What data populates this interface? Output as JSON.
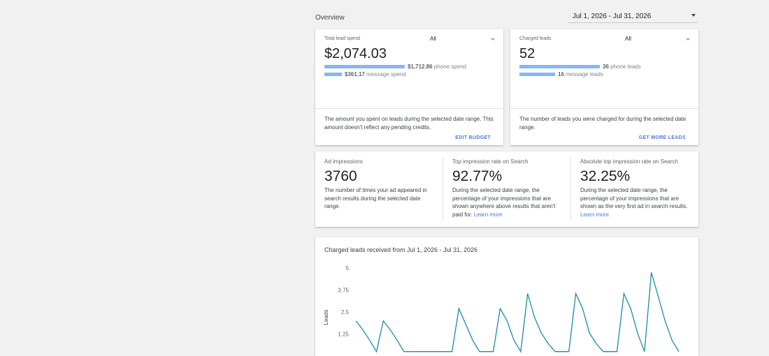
{
  "header": {
    "overview_label": "Overview",
    "date_range": "Jul 1, 2026 - Jul 31, 2026"
  },
  "spend_card": {
    "title": "Total lead spend",
    "filter": "All",
    "value": "$2,074.03",
    "phone_amount": "$1,712.86",
    "phone_label": "phone spend",
    "phone_share": 0.825,
    "message_amount": "$361.17",
    "message_label": "message spend",
    "message_share": 0.174,
    "description": "The amount you spent on leads during the selected date range. This amount doesn't reflect any pending credits.",
    "action": "EDIT BUDGET"
  },
  "leads_card": {
    "title": "Charged leads",
    "filter": "All",
    "value": "52",
    "phone_amount": "36",
    "phone_label": "phone leads",
    "phone_share": 0.69,
    "message_amount": "16",
    "message_label": "message leads",
    "message_share": 0.31,
    "description": "The number of leads you were charged for during the selected date range.",
    "action": "GET MORE LEADS"
  },
  "impressions_card": {
    "ad_impressions": {
      "title": "Ad impressions",
      "value": "3760",
      "description": "The number of times your ad appeared in search results during the selected date range."
    },
    "top_rate": {
      "title": "Top impression rate on Search",
      "value": "92.77%",
      "description": "During the selected date range, the percentage of your impressions that are shown anywhere above results that aren't paid for.",
      "link": "Learn more"
    },
    "abs_top_rate": {
      "title": "Absolute top impression rate on Search",
      "value": "32.25%",
      "description": "During the selected date range, the percentage of your impressions that are shown as the very first ad in search results.",
      "link": "Learn more"
    }
  },
  "chart_card": {
    "title": "Charged leads received from Jul 1, 2026 - Jul 31, 2026"
  },
  "chart_data": {
    "type": "line",
    "title": "Charged leads received from Jul 1, 2026 - Jul 31, 2026",
    "ylabel": "Leads",
    "xlabel": "",
    "ylim": [
      0,
      5
    ],
    "yticks": [
      "5",
      "3.75",
      "2.5",
      "1.25"
    ],
    "color": "#1a8ca8",
    "series": [
      {
        "values": [
          2,
          1.5,
          0.9,
          0.25,
          2,
          1.5,
          0.9,
          0.25,
          0.25,
          0.25,
          0.25,
          0.25,
          0.25,
          0.25,
          0.25,
          2.7,
          1.8,
          0.9,
          0.25,
          0.25,
          0.25,
          2.7,
          2,
          0.9,
          0.25,
          3.55,
          2.2,
          1.3,
          0.7,
          0.25,
          0.25,
          0.25,
          3.55,
          2.7,
          1.3,
          0.7,
          0.25,
          0.25,
          0.25,
          3.55,
          2.7,
          1.3,
          0.25,
          4.75,
          3.4,
          2,
          0.9,
          0.25
        ]
      }
    ]
  }
}
